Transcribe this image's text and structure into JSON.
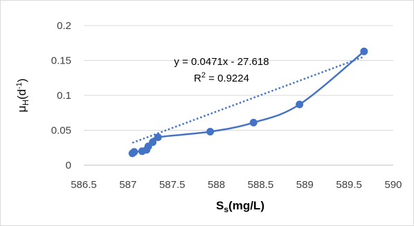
{
  "chart_data": {
    "type": "scatter",
    "xlabel": {
      "main": "S",
      "sub": "s",
      "rest": "(mg/L)"
    },
    "ylabel": {
      "main": "μ",
      "sub": "H",
      "rest1": "(d",
      "sup": "-1",
      "rest2": ")"
    },
    "xlim": [
      586.5,
      590
    ],
    "ylim": [
      0,
      0.2
    ],
    "x_ticks": [
      586.5,
      587,
      587.5,
      588,
      588.5,
      589,
      589.5,
      590
    ],
    "x_tick_labels": [
      "586.5",
      "587",
      "587.5",
      "588",
      "588.5",
      "589",
      "589.5",
      "590"
    ],
    "y_ticks": [
      0,
      0.05,
      0.1,
      0.15,
      0.2
    ],
    "y_tick_labels": [
      "0",
      "0.05",
      "0.1",
      "0.15",
      "0.2"
    ],
    "grid": {
      "horizontal": true,
      "vertical": false
    },
    "series": [
      {
        "points": [
          [
            587.05,
            0.017
          ],
          [
            587.07,
            0.019
          ],
          [
            587.16,
            0.02
          ],
          [
            587.21,
            0.022
          ],
          [
            587.23,
            0.027
          ],
          [
            587.28,
            0.033
          ],
          [
            587.34,
            0.04
          ],
          [
            587.93,
            0.048
          ],
          [
            588.42,
            0.061
          ],
          [
            588.94,
            0.087
          ],
          [
            589.67,
            0.163
          ]
        ],
        "color": "#4472c4",
        "line": "smooth"
      }
    ],
    "trendline": {
      "type": "linear",
      "slope": 0.0471,
      "intercept": -27.618,
      "x_range": [
        587.05,
        589.67
      ],
      "style": "dotted",
      "color": "#4472c4"
    },
    "annotations": {
      "equation": "y = 0.0471x - 27.618",
      "r2_prefix": "R",
      "r2_sup": "2",
      "r2_rest": " = 0.9224"
    }
  }
}
